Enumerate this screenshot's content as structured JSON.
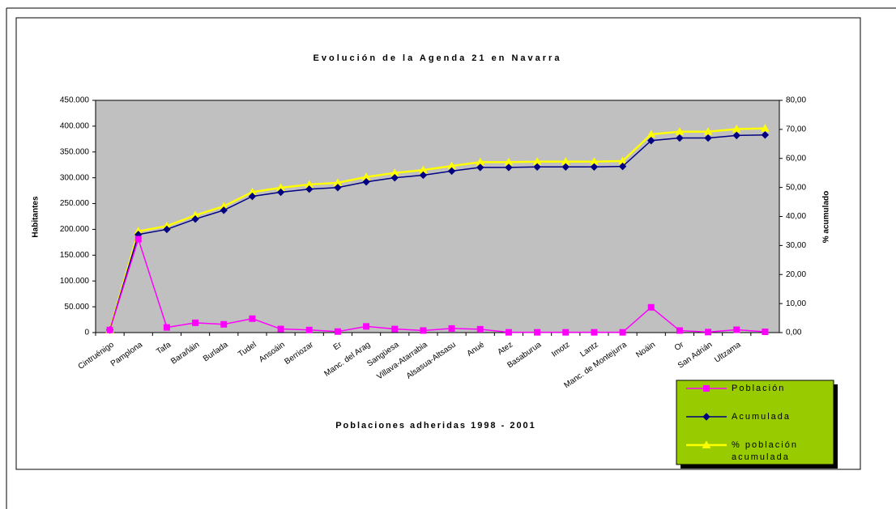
{
  "chart_data": {
    "type": "line",
    "title": "Evolución de la Agenda 21 en Navarra",
    "x_label": "Poblaciones adheridas 1998 - 2001",
    "y_label": "Habitantes",
    "y2_label": "% acumulado",
    "categories": [
      "Cintruénigo",
      "Pamplona",
      "Tafa",
      "Barañáin",
      "Burlada",
      "Tudel",
      "Ansoáin",
      "Berriozar",
      "Er",
      "Manc. del Arag",
      "Sangüesa",
      "Villava-Atarrabia",
      "Alsasua-Altsasu",
      "Anué",
      "Atez",
      "Basaburua",
      "Imotz",
      "Lantz",
      "Manc. de Montejurra",
      "Noáin",
      "Or",
      "San Adrián",
      "Ultzama",
      null
    ],
    "series": [
      {
        "name": "Población",
        "color": "#ff00ff",
        "marker": "square",
        "values": [
          5000,
          181000,
          10000,
          19000,
          16000,
          27000,
          7000,
          5000,
          2000,
          12000,
          7000,
          4000,
          8000,
          6500,
          500,
          500,
          500,
          500,
          500,
          49000,
          4000,
          1000,
          5500,
          1500
        ]
      },
      {
        "name": "Acumulada",
        "color": "#000080",
        "marker": "diamond",
        "values": [
          5000,
          190000,
          200000,
          220000,
          237000,
          264000,
          272000,
          278000,
          281000,
          292000,
          300000,
          305000,
          313000,
          320000,
          320000,
          321000,
          321000,
          321000,
          322000,
          372000,
          377000,
          377000,
          382000,
          383000
        ]
      },
      {
        "name": "% población acumulada",
        "color": "#ffff00",
        "marker": "triangle",
        "axis": "y2",
        "values": [
          0.9,
          34.9,
          36.7,
          40.4,
          43.5,
          48.4,
          49.9,
          51.0,
          51.6,
          53.6,
          55.0,
          56.0,
          57.4,
          58.7,
          58.7,
          58.9,
          58.9,
          58.9,
          59.1,
          68.3,
          69.2,
          69.2,
          70.1,
          70.3
        ]
      }
    ],
    "ylim": [
      0,
      450000
    ],
    "yticks": [
      0,
      {
        "value": 50000,
        "label": "50.000"
      },
      {
        "value": 100000,
        "label": "100.000"
      },
      {
        "value": 150000,
        "label": "150.000"
      },
      {
        "value": 200000,
        "label": "200.000"
      },
      {
        "value": 250000,
        "label": "250.000"
      },
      {
        "value": 300000,
        "label": "300.000"
      },
      {
        "value": 350000,
        "label": "350.000"
      },
      {
        "value": 400000,
        "label": "400.000"
      },
      {
        "value": 450000,
        "label": "450.000"
      }
    ],
    "y2lim": [
      0,
      80
    ],
    "y2ticks": [
      {
        "value": 0,
        "label": "0,00"
      },
      {
        "value": 10,
        "label": "10,00"
      },
      {
        "value": 20,
        "label": "20,00"
      },
      {
        "value": 30,
        "label": "30,00"
      },
      {
        "value": 40,
        "label": "40,00"
      },
      {
        "value": 50,
        "label": "50,00"
      },
      {
        "value": 60,
        "label": "60,00"
      },
      {
        "value": 70,
        "label": "70,00"
      },
      {
        "value": 80,
        "label": "80,00"
      }
    ],
    "plot_background": "#c0c0c0",
    "legend": "lower right",
    "legend_background": "#99cc00"
  }
}
